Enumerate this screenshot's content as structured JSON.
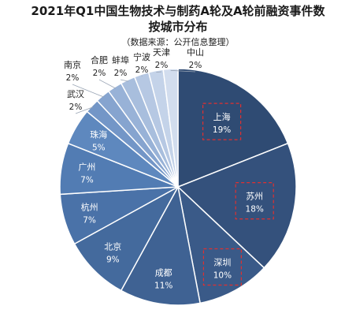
{
  "header": {
    "title_line1": "2021年Q1中国生物技术与制药A轮及A轮前融资事件数",
    "title_line2": "按城市分布",
    "subtitle": "（数据来源：公开信息整理）"
  },
  "chart_data": {
    "type": "pie",
    "title": "2021年Q1中国生物技术与制药A轮及A轮前融资事件数按城市分布",
    "subtitle": "（数据来源：公开信息整理）",
    "unit": "%",
    "start": "12 o'clock",
    "direction": "clockwise",
    "highlighted": [
      "上海",
      "苏州",
      "深圳"
    ],
    "slices": [
      {
        "label": "上海",
        "value": 19,
        "value_label": "19%",
        "color": "#2f4b73",
        "label_color": "#ffffff",
        "highlight": true
      },
      {
        "label": "苏州",
        "value": 18,
        "value_label": "18%",
        "color": "#34517c",
        "label_color": "#ffffff",
        "highlight": true
      },
      {
        "label": "深圳",
        "value": 10,
        "value_label": "10%",
        "color": "#3a5a88",
        "label_color": "#ffffff",
        "highlight": true
      },
      {
        "label": "成都",
        "value": 11,
        "value_label": "11%",
        "color": "#3f6293",
        "label_color": "#ffffff",
        "highlight": false
      },
      {
        "label": "北京",
        "value": 9,
        "value_label": "9%",
        "color": "#446a9d",
        "label_color": "#ffffff",
        "highlight": false
      },
      {
        "label": "杭州",
        "value": 7,
        "value_label": "7%",
        "color": "#4a72a8",
        "label_color": "#ffffff",
        "highlight": false
      },
      {
        "label": "广州",
        "value": 7,
        "value_label": "7%",
        "color": "#527cb3",
        "label_color": "#ffffff",
        "highlight": false
      },
      {
        "label": "珠海",
        "value": 5,
        "value_label": "5%",
        "color": "#5e88be",
        "label_color": "#ffffff",
        "highlight": false
      },
      {
        "label": "武汉",
        "value": 2,
        "value_label": "2%",
        "color": "#7396c7",
        "label_color": "#222222",
        "highlight": false
      },
      {
        "label": "南京",
        "value": 2,
        "value_label": "2%",
        "color": "#86a4cf",
        "label_color": "#222222",
        "highlight": false
      },
      {
        "label": "合肥",
        "value": 2,
        "value_label": "2%",
        "color": "#98b2d7",
        "label_color": "#222222",
        "highlight": false
      },
      {
        "label": "蚌埠",
        "value": 2,
        "value_label": "2%",
        "color": "#a8bedd",
        "label_color": "#222222",
        "highlight": false
      },
      {
        "label": "宁波",
        "value": 2,
        "value_label": "2%",
        "color": "#b6c8e3",
        "label_color": "#222222",
        "highlight": false
      },
      {
        "label": "天津",
        "value": 2,
        "value_label": "2%",
        "color": "#c4d3e9",
        "label_color": "#222222",
        "highlight": false
      },
      {
        "label": "中山",
        "value": 2,
        "value_label": "2%",
        "color": "#d2ddee",
        "label_color": "#222222",
        "highlight": false
      }
    ]
  }
}
